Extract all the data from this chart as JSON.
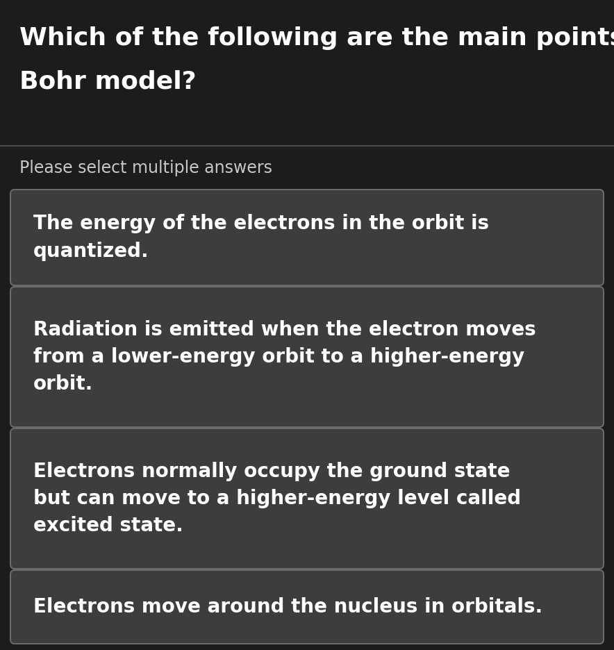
{
  "title_line1": "Which of the following are the main points of the",
  "title_line2": "Bohr model?",
  "subtitle": "Please select multiple answers",
  "options": [
    "The energy of the electrons in the orbit is\nquantized.",
    "Radiation is emitted when the electron moves\nfrom a lower-energy orbit to a higher-energy\norbit.",
    "Electrons normally occupy the ground state\nbut can move to a higher-energy level called\nexcited state.",
    "Electrons move around the nucleus in orbitals."
  ],
  "bg_color": "#1c1c1c",
  "header_bg": "#1c1c1c",
  "card_bg": "#3d3d3d",
  "card_border": "#6a6a6a",
  "title_color": "#ffffff",
  "subtitle_color": "#c8c8c8",
  "option_color": "#ffffff",
  "title_fontsize": 26,
  "subtitle_fontsize": 17,
  "option_fontsize": 20,
  "separator_color": "#555555"
}
